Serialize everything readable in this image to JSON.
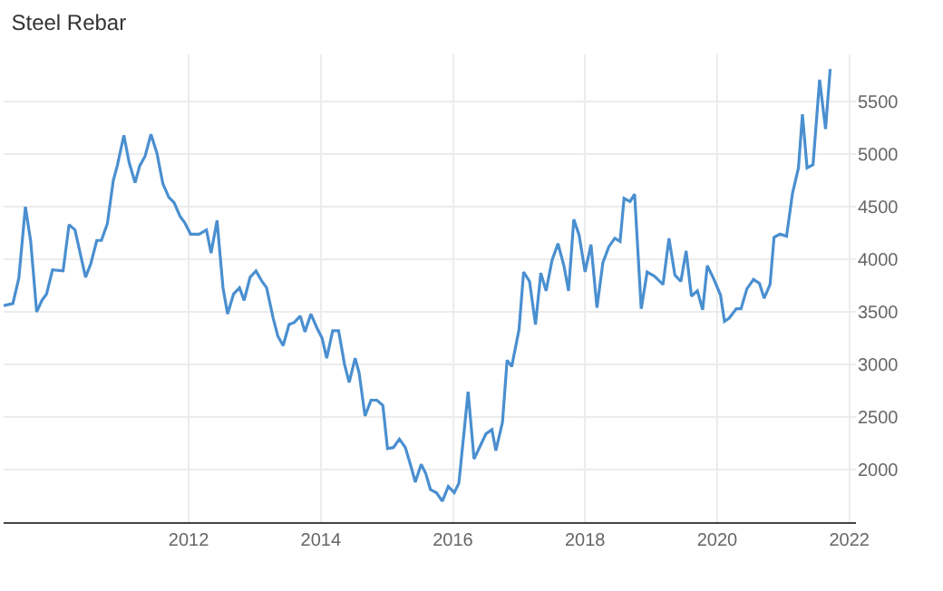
{
  "chart_data": {
    "type": "line",
    "title": "Steel Rebar",
    "x": [
      2009.2,
      2009.34,
      2009.43,
      2009.53,
      2009.61,
      2009.7,
      2009.78,
      2009.85,
      2009.94,
      2010.1,
      2010.19,
      2010.28,
      2010.44,
      2010.52,
      2010.61,
      2010.68,
      2010.77,
      2010.86,
      2010.92,
      2011.02,
      2011.1,
      2011.19,
      2011.26,
      2011.34,
      2011.43,
      2011.52,
      2011.61,
      2011.7,
      2011.78,
      2011.87,
      2011.94,
      2012.03,
      2012.16,
      2012.27,
      2012.34,
      2012.43,
      2012.52,
      2012.59,
      2012.68,
      2012.77,
      2012.84,
      2012.93,
      2013.02,
      2013.11,
      2013.18,
      2013.28,
      2013.35,
      2013.43,
      2013.52,
      2013.6,
      2013.69,
      2013.76,
      2013.85,
      2013.94,
      2014.02,
      2014.09,
      2014.18,
      2014.27,
      2014.36,
      2014.43,
      2014.52,
      2014.58,
      2014.67,
      2014.76,
      2014.85,
      2014.94,
      2015.01,
      2015.1,
      2015.19,
      2015.28,
      2015.37,
      2015.43,
      2015.52,
      2015.59,
      2015.66,
      2015.75,
      2015.84,
      2015.93,
      2016.02,
      2016.09,
      2016.23,
      2016.32,
      2016.41,
      2016.5,
      2016.59,
      2016.65,
      2016.75,
      2016.82,
      2016.89,
      2017.0,
      2017.07,
      2017.16,
      2017.25,
      2017.33,
      2017.41,
      2017.5,
      2017.59,
      2017.68,
      2017.75,
      2017.83,
      2017.91,
      2018.0,
      2018.09,
      2018.18,
      2018.27,
      2018.36,
      2018.45,
      2018.53,
      2018.59,
      2018.68,
      2018.75,
      2018.85,
      2018.94,
      2019.05,
      2019.18,
      2019.27,
      2019.36,
      2019.45,
      2019.53,
      2019.61,
      2019.7,
      2019.78,
      2019.85,
      2019.95,
      2020.05,
      2020.11,
      2020.18,
      2020.29,
      2020.36,
      2020.45,
      2020.55,
      2020.64,
      2020.71,
      2020.8,
      2020.86,
      2020.95,
      2021.05,
      2021.14,
      2021.23,
      2021.29,
      2021.36,
      2021.45,
      2021.55,
      2021.64,
      2021.71
    ],
    "series": [
      {
        "color": "#4a8fd0",
        "values": [
          3560,
          3580,
          3820,
          4500,
          4170,
          3500,
          3610,
          3670,
          3900,
          3890,
          4330,
          4280,
          3830,
          3960,
          4180,
          4180,
          4340,
          4750,
          4890,
          5180,
          4920,
          4730,
          4890,
          4980,
          5190,
          5010,
          4720,
          4590,
          4540,
          4410,
          4350,
          4240,
          4240,
          4280,
          4060,
          4370,
          3730,
          3480,
          3670,
          3730,
          3610,
          3830,
          3890,
          3790,
          3730,
          3440,
          3270,
          3180,
          3380,
          3400,
          3460,
          3310,
          3480,
          3350,
          3250,
          3060,
          3320,
          3320,
          3000,
          2830,
          3060,
          2920,
          2510,
          2660,
          2660,
          2610,
          2200,
          2210,
          2290,
          2210,
          2020,
          1880,
          2050,
          1960,
          1810,
          1780,
          1700,
          1840,
          1780,
          1870,
          2740,
          2100,
          2220,
          2340,
          2380,
          2180,
          2450,
          3040,
          2980,
          3330,
          3880,
          3790,
          3380,
          3870,
          3700,
          3990,
          4150,
          3940,
          3700,
          4380,
          4230,
          3880,
          4140,
          3540,
          3970,
          4120,
          4200,
          4170,
          4580,
          4550,
          4620,
          3530,
          3880,
          3840,
          3760,
          4200,
          3850,
          3790,
          4080,
          3650,
          3700,
          3520,
          3940,
          3810,
          3660,
          3410,
          3440,
          3530,
          3530,
          3720,
          3810,
          3770,
          3630,
          3760,
          4210,
          4240,
          4220,
          4630,
          4870,
          5380,
          4870,
          4900,
          5710,
          5240,
          5810
        ]
      }
    ],
    "xlim": [
      2009.2,
      2022.1
    ],
    "xticks": [
      2012,
      2014,
      2016,
      2018,
      2020,
      2022
    ],
    "ylim": [
      1500,
      5950
    ],
    "yticks": [
      2000,
      2500,
      3000,
      3500,
      4000,
      4500,
      5000,
      5500
    ],
    "grid": true,
    "line_style": "solid",
    "marker": "none"
  }
}
